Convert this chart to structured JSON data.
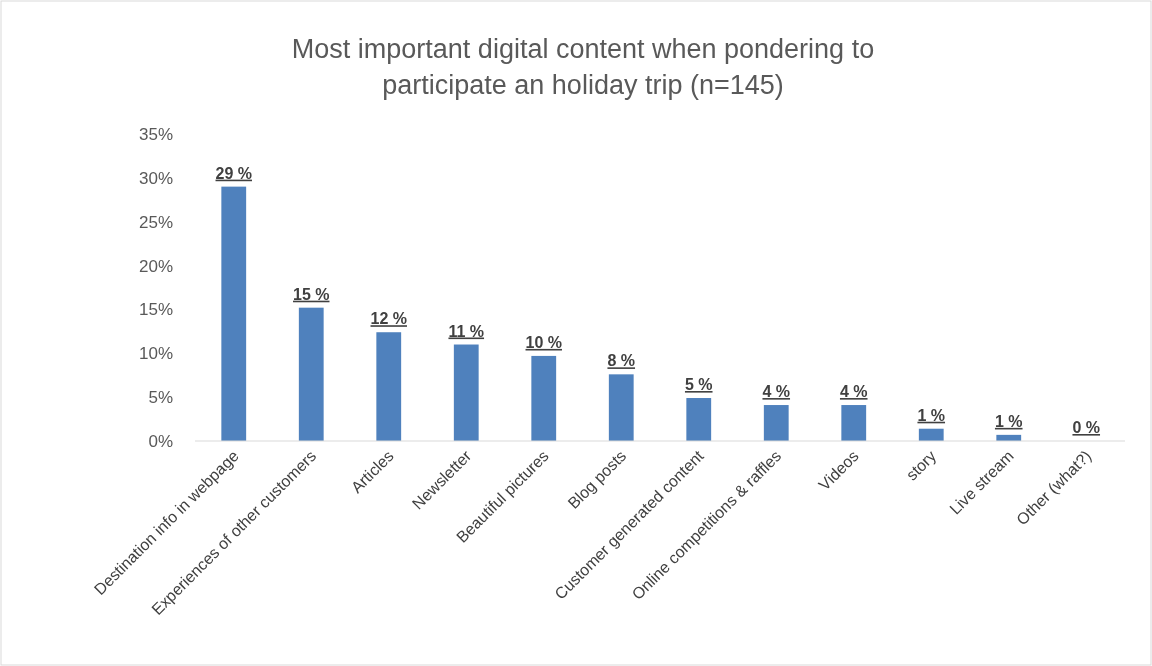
{
  "chart_data": {
    "type": "bar",
    "title": "Most important digital content when pondering to\nparticipate an holiday trip (n=145)",
    "categories": [
      "Destination info in webpage",
      "Experiences of other customers",
      "Articles",
      "Newsletter",
      "Beautiful pictures",
      "Blog posts",
      "Customer generated content",
      "Online competitions & raffles",
      "Videos",
      "story",
      "Live stream",
      "Other (what?)"
    ],
    "values": [
      29,
      15.2,
      12.4,
      11,
      9.7,
      7.6,
      4.9,
      4.1,
      4.1,
      1.4,
      0.7,
      0
    ],
    "value_labels": [
      "29 %",
      "15 %",
      "12 %",
      "11 %",
      "10 %",
      "8 %",
      "5 %",
      "4 %",
      "4 %",
      "1 %",
      "1 %",
      "0 %"
    ],
    "color": "#4f81bd",
    "ylim": [
      0,
      35
    ],
    "yticks": [
      {
        "value": 0,
        "label": "0%"
      },
      {
        "value": 5,
        "label": "5%"
      },
      {
        "value": 10,
        "label": "10%"
      },
      {
        "value": 15,
        "label": "15%"
      },
      {
        "value": 20,
        "label": "20%"
      },
      {
        "value": 25,
        "label": "25%"
      },
      {
        "value": 30,
        "label": "30%"
      },
      {
        "value": 35,
        "label": "35%"
      }
    ],
    "grid": false
  }
}
